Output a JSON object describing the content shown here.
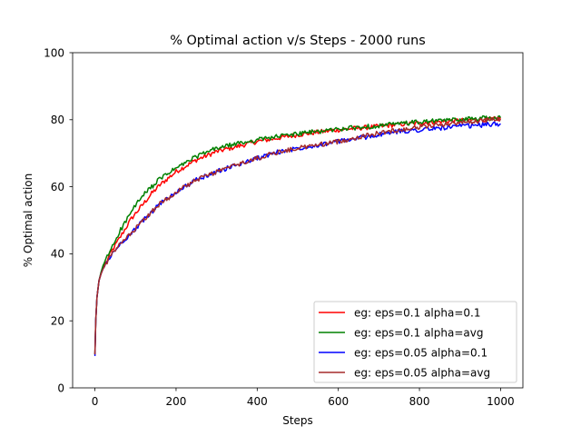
{
  "chart_data": {
    "type": "line",
    "title": "% Optimal action v/s Steps - 2000 runs",
    "xlabel": "Steps",
    "ylabel": "% Optimal action",
    "xlim": [
      -55,
      1055
    ],
    "ylim": [
      0,
      100
    ],
    "xticks": [
      0,
      200,
      400,
      600,
      800,
      1000
    ],
    "yticks": [
      0,
      20,
      40,
      60,
      80,
      100
    ],
    "grid": false,
    "legend_position": "lower right",
    "series": [
      {
        "name": "eg: eps=0.1 alpha=0.1",
        "color": "#ff0000",
        "x": [
          0,
          2,
          5,
          10,
          15,
          20,
          30,
          40,
          50,
          60,
          70,
          80,
          90,
          100,
          120,
          140,
          160,
          180,
          200,
          250,
          300,
          350,
          400,
          450,
          500,
          550,
          600,
          650,
          700,
          750,
          800,
          850,
          900,
          950,
          1000
        ],
        "y": [
          10,
          20,
          27,
          32,
          34,
          36,
          38,
          40.5,
          42.5,
          44.5,
          46.5,
          48.5,
          50.5,
          52,
          55,
          58,
          60.5,
          62.5,
          64.5,
          68,
          70.5,
          72,
          73.5,
          74.5,
          75.5,
          76.3,
          77,
          77.5,
          78,
          78.6,
          79,
          79.4,
          79.8,
          80,
          80.3
        ]
      },
      {
        "name": "eg: eps=0.1 alpha=avg",
        "color": "#008000",
        "x": [
          0,
          2,
          5,
          10,
          15,
          20,
          30,
          40,
          50,
          60,
          70,
          80,
          90,
          100,
          120,
          140,
          160,
          180,
          200,
          250,
          300,
          350,
          400,
          450,
          500,
          550,
          600,
          650,
          700,
          750,
          800,
          850,
          900,
          950,
          1000
        ],
        "y": [
          10,
          20,
          27,
          32,
          34.5,
          36.5,
          39,
          41.5,
          44,
          46.5,
          48.5,
          50.5,
          52.5,
          54.5,
          57.5,
          60,
          62.3,
          64,
          65.5,
          69,
          71.5,
          72.8,
          74,
          75,
          75.8,
          76.5,
          77.2,
          77.7,
          78.2,
          78.8,
          79.3,
          79.7,
          80.1,
          80.4,
          80.6
        ]
      },
      {
        "name": "eg: eps=0.05 alpha=0.1",
        "color": "#0000ff",
        "x": [
          0,
          2,
          5,
          10,
          15,
          20,
          30,
          40,
          50,
          60,
          70,
          80,
          90,
          100,
          120,
          140,
          160,
          180,
          200,
          250,
          300,
          350,
          400,
          450,
          500,
          550,
          600,
          650,
          700,
          750,
          800,
          850,
          900,
          950,
          1000
        ],
        "y": [
          9.5,
          20,
          27,
          32,
          34,
          35.5,
          37.5,
          39.5,
          41,
          42.5,
          44,
          45,
          46,
          47.5,
          50,
          52.5,
          55,
          56.5,
          58.5,
          62,
          64.5,
          66.5,
          68.5,
          70.3,
          71.5,
          72.5,
          73.5,
          74.5,
          75.5,
          76.5,
          77,
          77.5,
          78,
          78.4,
          78.8
        ]
      },
      {
        "name": "eg: eps=0.05 alpha=avg",
        "color": "#a52a2a",
        "x": [
          0,
          2,
          5,
          10,
          15,
          20,
          30,
          40,
          50,
          60,
          70,
          80,
          90,
          100,
          120,
          140,
          160,
          180,
          200,
          250,
          300,
          350,
          400,
          450,
          500,
          550,
          600,
          650,
          700,
          750,
          800,
          850,
          900,
          950,
          1000
        ],
        "y": [
          10,
          20,
          27,
          32,
          34,
          35.5,
          37.5,
          39.5,
          41,
          42.5,
          44,
          45,
          46,
          47.5,
          50,
          52.5,
          55,
          56.5,
          58.5,
          62,
          64.5,
          66.5,
          68.5,
          70.3,
          71.5,
          72.5,
          73.5,
          74.8,
          76,
          77,
          77.8,
          78.5,
          79.2,
          79.7,
          80.2
        ]
      }
    ]
  }
}
